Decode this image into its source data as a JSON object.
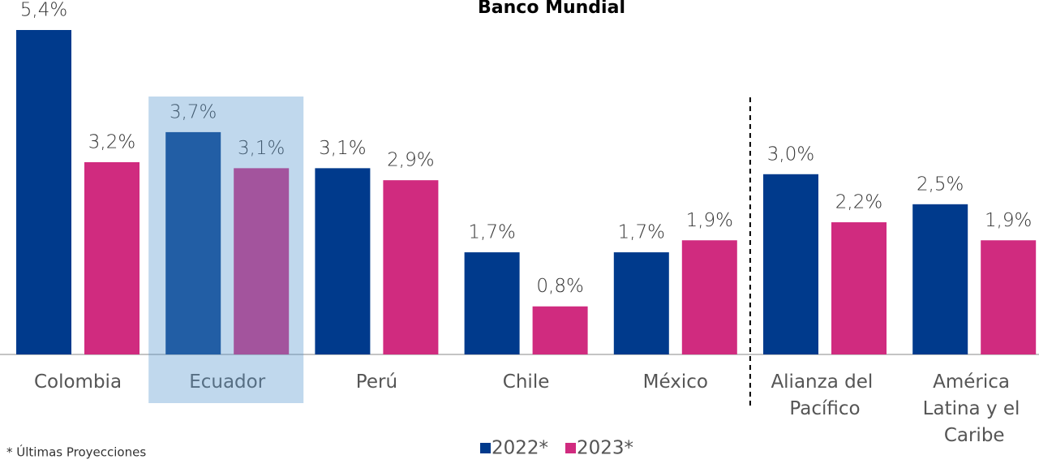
{
  "chart_data": {
    "type": "bar",
    "title": "Banco Mundial",
    "categories": [
      "Colombia",
      "Ecuador",
      "Perú",
      "Chile",
      "México",
      "Alianza del Pacífico",
      "América Latina y el Caribe"
    ],
    "series": [
      {
        "name": "2022*",
        "color": "#003a8c",
        "values": [
          5.4,
          3.7,
          3.1,
          1.7,
          1.7,
          3.0,
          2.5
        ],
        "value_labels": [
          "5,4%",
          "3,7%",
          "3,1%",
          "1,7%",
          "1,7%",
          "3,0%",
          "2,5%"
        ]
      },
      {
        "name": "2023*",
        "color": "#d02b7f",
        "values": [
          3.2,
          3.1,
          2.9,
          0.8,
          1.9,
          2.2,
          1.9
        ],
        "value_labels": [
          "3,2%",
          "3,1%",
          "2,9%",
          "0,8%",
          "1,9%",
          "2,2%",
          "1,9%"
        ]
      }
    ],
    "highlight": "Ecuador",
    "separator_after": "México",
    "legend": "bottom",
    "footnote": "* Últimas Proyecciones"
  }
}
